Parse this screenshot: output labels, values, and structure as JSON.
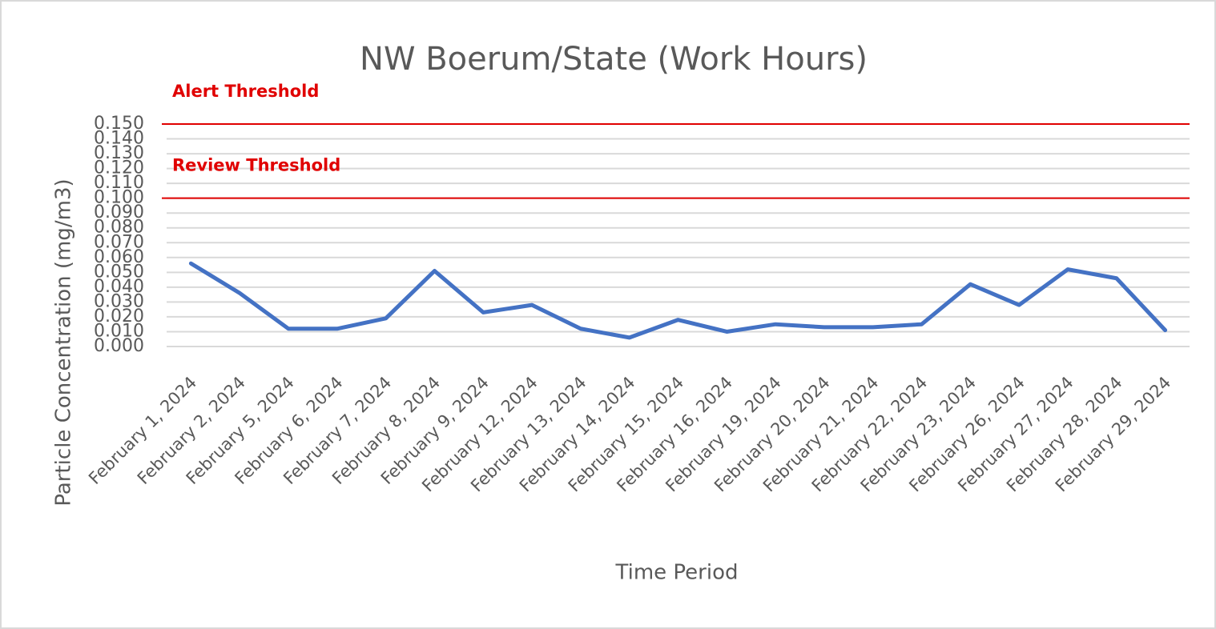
{
  "chart_data": {
    "type": "line",
    "title": "NW Boerum/State (Work Hours)",
    "xlabel": "Time Period",
    "ylabel": "Particle Concentration (mg/m3)",
    "categories": [
      "February 1, 2024",
      "February 2, 2024",
      "February 5, 2024",
      "February 6, 2024",
      "February 7, 2024",
      "February 8, 2024",
      "February 9, 2024",
      "February 12, 2024",
      "February 13, 2024",
      "February 14, 2024",
      "February 15, 2024",
      "February 16, 2024",
      "February 19, 2024",
      "February 20, 2024",
      "February 21, 2024",
      "February 22, 2024",
      "February 23, 2024",
      "February 26, 2024",
      "February 27, 2024",
      "February 28, 2024",
      "February 29, 2024"
    ],
    "series": [
      {
        "name": "Particle Concentration",
        "color": "#4472c4",
        "values": [
          0.056,
          0.036,
          0.012,
          0.012,
          0.019,
          0.051,
          0.023,
          0.028,
          0.012,
          0.006,
          0.018,
          0.01,
          0.015,
          0.013,
          0.013,
          0.015,
          0.042,
          0.028,
          0.052,
          0.046,
          0.011
        ]
      }
    ],
    "thresholds": [
      {
        "label": "Alert Threshold",
        "value": 0.15,
        "color": "#e00000"
      },
      {
        "label": "Review Threshold",
        "value": 0.1,
        "color": "#e00000"
      }
    ],
    "ylim": [
      0,
      0.15
    ],
    "yticks": [
      {
        "value": 0,
        "label": "0.000"
      },
      {
        "value": 0.01,
        "label": "0.010"
      },
      {
        "value": 0.02,
        "label": "0.020"
      },
      {
        "value": 0.03,
        "label": "0.030"
      },
      {
        "value": 0.04,
        "label": "0.040"
      },
      {
        "value": 0.05,
        "label": "0.050"
      },
      {
        "value": 0.06,
        "label": "0.060"
      },
      {
        "value": 0.07,
        "label": "0.070"
      },
      {
        "value": 0.08,
        "label": "0.080"
      },
      {
        "value": 0.09,
        "label": "0.090"
      },
      {
        "value": 0.1,
        "label": "0.100"
      },
      {
        "value": 0.11,
        "label": "0.110"
      },
      {
        "value": 0.12,
        "label": "0.120"
      },
      {
        "value": 0.13,
        "label": "0.130"
      },
      {
        "value": 0.14,
        "label": "0.140"
      },
      {
        "value": 0.15,
        "label": "0.150"
      }
    ],
    "grid": true
  }
}
